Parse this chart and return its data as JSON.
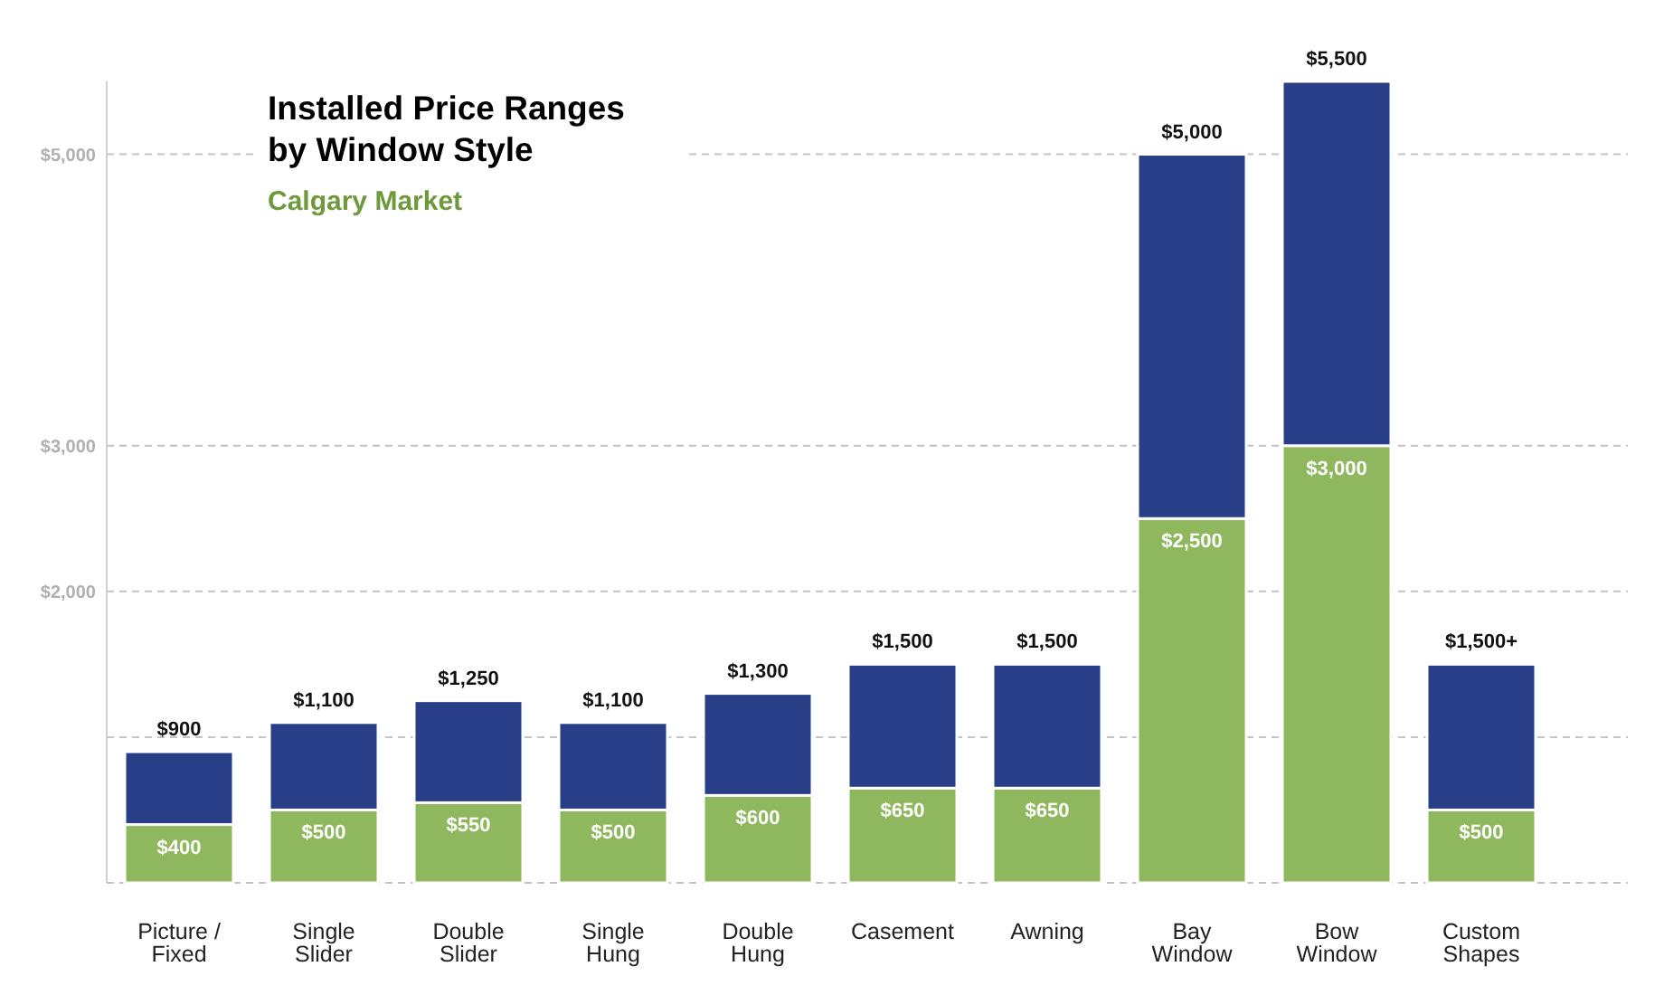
{
  "chart_data": {
    "type": "bar",
    "title": "Installed Price Ranges by Window Style",
    "subtitle": "Calgary Market",
    "categories": [
      "Picture / Fixed",
      "Single Slider",
      "Double Slider",
      "Single Hung",
      "Double Hung",
      "Casement",
      "Awning",
      "Bay Window",
      "Bow Window",
      "Custom Shapes"
    ],
    "stacked": true,
    "series": [
      {
        "color": "#8fb85e",
        "values": [
          400,
          500,
          550,
          500,
          600,
          650,
          650,
          2500,
          3000,
          500
        ],
        "value_labels": [
          "$400",
          "$500",
          "$550",
          "$500",
          "$600",
          "$650",
          "$650",
          "$2,500",
          "$3,000",
          "$500"
        ]
      },
      {
        "color": "#283f87",
        "values": [
          500,
          600,
          700,
          600,
          700,
          850,
          850,
          2500,
          2500,
          1000
        ]
      }
    ],
    "totals": [
      "$900",
      "$1,100",
      "$1,250",
      "$1,100",
      "$1,300",
      "$1,500",
      "$1,500",
      "$5,000",
      "$5,500",
      "$1,500+"
    ],
    "ylim": [
      0,
      5500
    ],
    "yticks": [
      {
        "value": 0,
        "label": null
      },
      {
        "value": 1000,
        "label": null
      },
      {
        "value": 2000,
        "label": "$2,000"
      },
      {
        "value": 3000,
        "label": "$3,000"
      },
      {
        "value": 5000,
        "label": "$5,000"
      }
    ],
    "grid": "y"
  }
}
